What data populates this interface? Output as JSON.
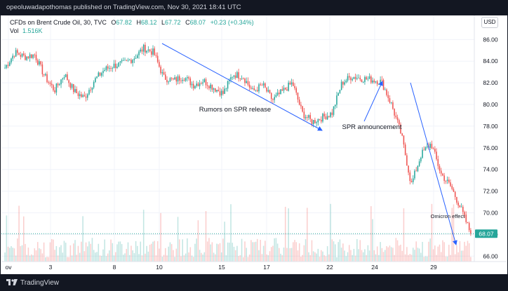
{
  "header": {
    "publisher_line": "opeoluwadapothomas published on TradingView.com, Nov 30, 2021 18:41 UTC"
  },
  "legend": {
    "title": "CFDs on Brent Crude Oil, 30, TVC",
    "o_label": "O",
    "o_value": "67.82",
    "h_label": "H",
    "h_value": "68.12",
    "l_label": "L",
    "l_value": "67.72",
    "c_label": "C",
    "c_value": "68.07",
    "change": "+0.23 (+0.34%)",
    "vol_label": "Vol",
    "vol_value": "1.516K"
  },
  "currency_button": "USD",
  "footer": {
    "brand": "TradingView"
  },
  "colors": {
    "up": "#26a69a",
    "down": "#ef5350",
    "annotation": "#2962ff",
    "last_price_badge": "#26a69a",
    "last_price_line": "#26a69a"
  },
  "chart_data": {
    "type": "candlestick",
    "y_axis": {
      "ticks": [
        "86.00",
        "84.00",
        "82.00",
        "80.00",
        "78.00",
        "76.00",
        "74.00",
        "72.00",
        "70.00",
        "68.00",
        "66.00"
      ],
      "range": [
        65.5,
        86.8
      ],
      "position": "right"
    },
    "x_axis": {
      "ticks": [
        "ov",
        "3",
        "8",
        "10",
        "15",
        "17",
        "22",
        "24",
        "29"
      ]
    },
    "last_price": "68.07",
    "price_path": [
      [
        "Nov 1",
        83.4
      ],
      [
        "Nov 1b",
        84.8
      ],
      [
        "Nov 2",
        84.4
      ],
      [
        "Nov 2b",
        84.6
      ],
      [
        "Nov 3",
        82.6
      ],
      [
        "Nov 3b",
        81.3
      ],
      [
        "Nov 4",
        82.8
      ],
      [
        "Nov 4b",
        81.2
      ],
      [
        "Nov 5",
        80.6
      ],
      [
        "Nov 5b",
        82.2
      ],
      [
        "Nov 8",
        83.2
      ],
      [
        "Nov 8b",
        83.6
      ],
      [
        "Nov 9",
        83.8
      ],
      [
        "Nov 9b",
        84.3
      ],
      [
        "Nov 10",
        85.2
      ],
      [
        "Nov 10b",
        84.8
      ],
      [
        "Nov 11",
        82.5
      ],
      [
        "Nov 11b",
        82.2
      ],
      [
        "Nov 12",
        82.6
      ],
      [
        "Nov 12b",
        81.8
      ],
      [
        "Nov 15",
        82.2
      ],
      [
        "Nov 15b",
        81.6
      ],
      [
        "Nov 16",
        81.0
      ],
      [
        "Nov 16b",
        82.8
      ],
      [
        "Nov 17",
        82.6
      ],
      [
        "Nov 17b",
        81.2
      ],
      [
        "Nov 18",
        81.8
      ],
      [
        "Nov 18b",
        80.4
      ],
      [
        "Nov 19",
        81.2
      ],
      [
        "Nov 19b",
        82.0
      ],
      [
        "Nov 22",
        79.2
      ],
      [
        "Nov 22b",
        78.4
      ],
      [
        "Nov 23",
        78.8
      ],
      [
        "Nov 23b",
        79.2
      ],
      [
        "Nov 24",
        82.0
      ],
      [
        "Nov 24b",
        82.6
      ],
      [
        "Nov 25",
        82.4
      ],
      [
        "Nov 25b",
        82.3
      ],
      [
        "Nov 26",
        82.1
      ],
      [
        "Nov 26b",
        80.0
      ],
      [
        "Nov 26c",
        77.2
      ],
      [
        "Nov 26d",
        72.6
      ],
      [
        "Nov 29",
        75.4
      ],
      [
        "Nov 29b",
        76.4
      ],
      [
        "Nov 29c",
        73.6
      ],
      [
        "Nov 30",
        72.4
      ],
      [
        "Nov 30b",
        70.4
      ],
      [
        "Nov 30c",
        68.07
      ]
    ],
    "annotations": [
      {
        "text": "Rumors on SPR release"
      },
      {
        "text": "SPR announcement"
      },
      {
        "text": "Omicron effect"
      }
    ]
  }
}
